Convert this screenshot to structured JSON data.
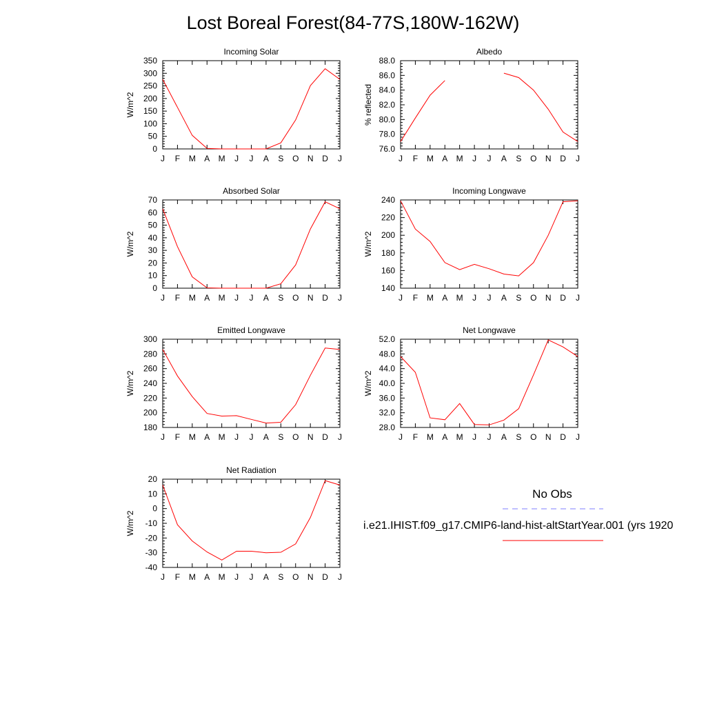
{
  "title": "Lost Boreal Forest(84-77S,180W-162W)",
  "legend": {
    "obs_label": "No Obs",
    "obs_color": "#7f7fff",
    "model_label": "i.e21.IHIST.f09_g17.CMIP6-land-hist-altStartYear.001 (yrs 1920",
    "model_color": "#ff0000"
  },
  "line_color": "#ff0000",
  "chart_data": [
    {
      "type": "line",
      "title": "Incoming Solar",
      "ylabel": "W/m^2",
      "categories": [
        "J",
        "F",
        "M",
        "A",
        "M",
        "J",
        "J",
        "A",
        "S",
        "O",
        "N",
        "D",
        "J"
      ],
      "ylim": [
        0,
        350
      ],
      "yticks": [
        0,
        50,
        100,
        150,
        200,
        250,
        300,
        350
      ],
      "yticklabels": [
        "0",
        "50",
        "100",
        "150",
        "200",
        "250",
        "300",
        "350"
      ],
      "series": [
        {
          "values": [
            276,
            165,
            54,
            2,
            0,
            0,
            0,
            0,
            24,
            115,
            251,
            318,
            276
          ]
        }
      ]
    },
    {
      "type": "line",
      "title": "Albedo",
      "ylabel": "% reflected",
      "categories": [
        "J",
        "F",
        "M",
        "A",
        "M",
        "J",
        "J",
        "A",
        "S",
        "O",
        "N",
        "D",
        "J"
      ],
      "ylim": [
        76,
        88
      ],
      "yticks": [
        76,
        78,
        80,
        82,
        84,
        86,
        88
      ],
      "yticklabels": [
        "76.0",
        "78.0",
        "80.0",
        "82.0",
        "84.0",
        "86.0",
        "88.0"
      ],
      "series": [
        {
          "values": [
            77.0,
            80.2,
            83.3,
            85.3,
            null,
            null,
            null,
            86.3,
            85.7,
            84.0,
            81.4,
            78.3,
            77.0
          ]
        }
      ]
    },
    {
      "type": "line",
      "title": "Absorbed Solar",
      "ylabel": "W/m^2",
      "categories": [
        "J",
        "F",
        "M",
        "A",
        "M",
        "J",
        "J",
        "A",
        "S",
        "O",
        "N",
        "D",
        "J"
      ],
      "ylim": [
        0,
        70
      ],
      "yticks": [
        0,
        10,
        20,
        30,
        40,
        50,
        60,
        70
      ],
      "yticklabels": [
        "0",
        "10",
        "20",
        "30",
        "40",
        "50",
        "60",
        "70"
      ],
      "series": [
        {
          "values": [
            63,
            33,
            9,
            0.3,
            0,
            0,
            0,
            0,
            3.5,
            18.5,
            47,
            68.5,
            63
          ]
        }
      ]
    },
    {
      "type": "line",
      "title": "Incoming Longwave",
      "ylabel": "W/m^2",
      "categories": [
        "J",
        "F",
        "M",
        "A",
        "M",
        "J",
        "J",
        "A",
        "S",
        "O",
        "N",
        "D",
        "J"
      ],
      "ylim": [
        140,
        240
      ],
      "yticks": [
        140,
        160,
        180,
        200,
        220,
        240
      ],
      "yticklabels": [
        "140",
        "160",
        "180",
        "200",
        "220",
        "240"
      ],
      "series": [
        {
          "values": [
            239,
            207,
            193,
            169,
            161,
            167,
            162,
            156,
            154,
            169,
            200,
            238,
            239
          ]
        }
      ]
    },
    {
      "type": "line",
      "title": "Emitted Longwave",
      "ylabel": "W/m^2",
      "categories": [
        "J",
        "F",
        "M",
        "A",
        "M",
        "J",
        "J",
        "A",
        "S",
        "O",
        "N",
        "D",
        "J"
      ],
      "ylim": [
        180,
        300
      ],
      "yticks": [
        180,
        200,
        220,
        240,
        260,
        280,
        300
      ],
      "yticklabels": [
        "180",
        "200",
        "220",
        "240",
        "260",
        "280",
        "300"
      ],
      "series": [
        {
          "values": [
            286,
            250,
            222,
            199,
            195.5,
            196,
            191,
            186,
            187,
            211,
            251,
            288,
            286
          ]
        }
      ]
    },
    {
      "type": "line",
      "title": "Net Longwave",
      "ylabel": "W/m^2",
      "categories": [
        "J",
        "F",
        "M",
        "A",
        "M",
        "J",
        "J",
        "A",
        "S",
        "O",
        "N",
        "D",
        "J"
      ],
      "ylim": [
        28,
        52
      ],
      "yticks": [
        28,
        32,
        36,
        40,
        44,
        48,
        52
      ],
      "yticklabels": [
        "28.0",
        "32.0",
        "36.0",
        "40.0",
        "44.0",
        "48.0",
        "52.0"
      ],
      "series": [
        {
          "values": [
            47.3,
            43.0,
            30.6,
            30.1,
            34.5,
            28.8,
            28.7,
            30.0,
            33.1,
            42.3,
            51.8,
            49.9,
            47.3
          ]
        }
      ]
    },
    {
      "type": "line",
      "title": "Net Radiation",
      "ylabel": "W/m^2",
      "categories": [
        "J",
        "F",
        "M",
        "A",
        "M",
        "J",
        "J",
        "A",
        "S",
        "O",
        "N",
        "D",
        "J"
      ],
      "ylim": [
        -40,
        20
      ],
      "yticks": [
        -40,
        -30,
        -20,
        -10,
        0,
        10,
        20
      ],
      "yticklabels": [
        "-40",
        "-30",
        "-20",
        "-10",
        "0",
        "10",
        "20"
      ],
      "series": [
        {
          "values": [
            16,
            -11,
            -22,
            -29.5,
            -35,
            -29,
            -29,
            -30,
            -29.7,
            -24,
            -6,
            19,
            16
          ]
        }
      ]
    }
  ]
}
